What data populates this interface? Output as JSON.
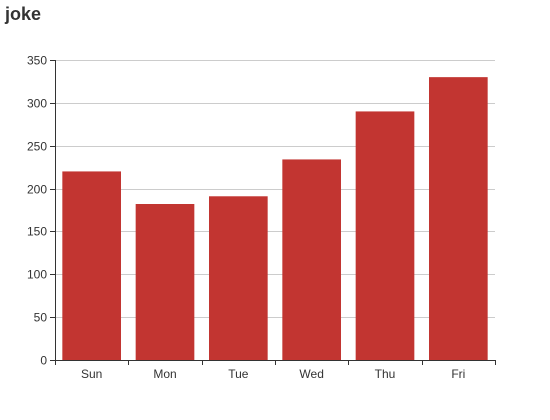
{
  "chart_data": {
    "type": "bar",
    "title": "joke",
    "categories": [
      "Sun",
      "Mon",
      "Tue",
      "Wed",
      "Thu",
      "Fri"
    ],
    "series": [
      {
        "values": [
          220,
          182,
          191,
          234,
          290,
          330
        ]
      }
    ],
    "ylim": [
      0,
      350
    ],
    "yticks": [
      0,
      50,
      100,
      150,
      200,
      250,
      300,
      350
    ],
    "grid": true,
    "colors": {
      "bar": "#c23531",
      "grid": "#cccccc",
      "axis": "#333333"
    }
  }
}
